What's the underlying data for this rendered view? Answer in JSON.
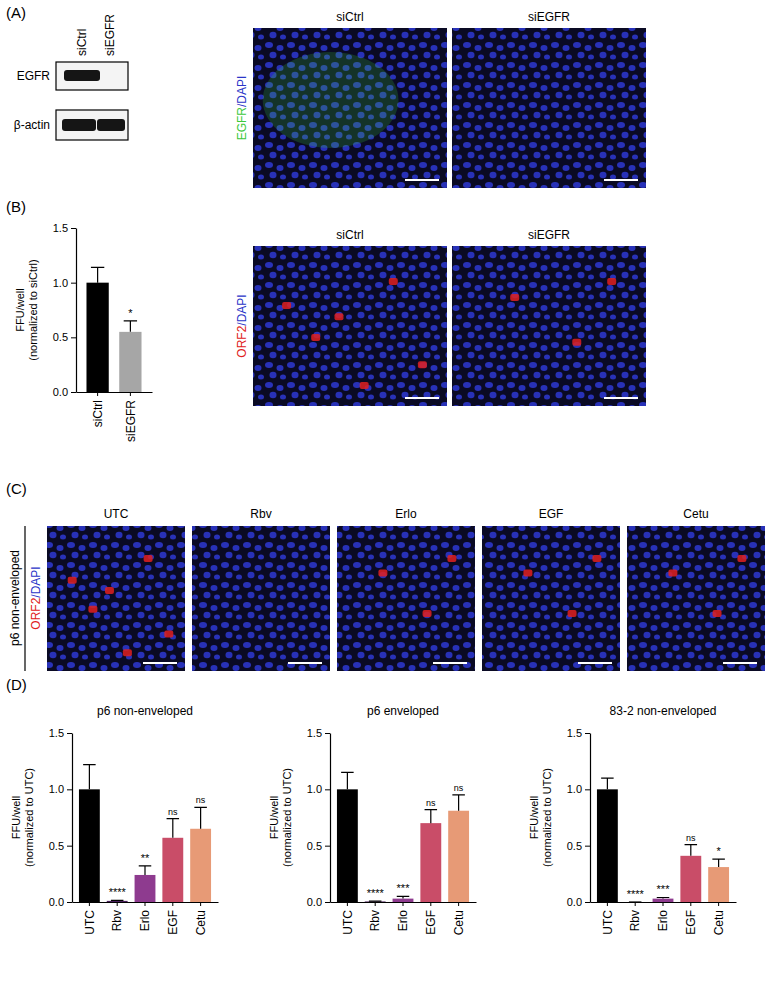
{
  "panel_labels": [
    "(A)",
    "(B)",
    "(C)",
    "(D)"
  ],
  "blot": {
    "lanes": [
      "siCtrl",
      "siEGFR"
    ],
    "rows": [
      "EGFR",
      "β-actin"
    ]
  },
  "image_panels": [
    {
      "titles": [
        "siCtrl",
        "siEGFR"
      ],
      "stain": [
        {
          "text": "EGFR",
          "color": "#3cc83c"
        },
        {
          "text": "/DAPI",
          "color": "#2b35c8"
        }
      ]
    },
    {
      "titles": [
        "siCtrl",
        "siEGFR"
      ],
      "stain": [
        {
          "text": "ORF2",
          "color": "#e02020"
        },
        {
          "text": "/DAPI",
          "color": "#2b35c8"
        }
      ]
    },
    {
      "row_label": "p6 non-enveloped",
      "titles": [
        "UTC",
        "Rbv",
        "Erlo",
        "EGF",
        "Cetu"
      ],
      "stain": [
        {
          "text": "ORF2",
          "color": "#e02020"
        },
        {
          "text": "/DAPI",
          "color": "#2b35c8"
        }
      ]
    }
  ],
  "chart_data": [
    {
      "type": "bar",
      "ylabel": [
        "FFU/well",
        "(normalized to siCtrl)"
      ],
      "categories": [
        "siCtrl",
        "siEGFR"
      ],
      "values": [
        1.0,
        0.55
      ],
      "errors": [
        0.14,
        0.1
      ],
      "colors": [
        "#000000",
        "#a6a6a6"
      ],
      "annotations": [
        null,
        "*"
      ],
      "ylim": [
        0,
        1.5
      ],
      "yticks": [
        {
          "value": 0,
          "label": "0.0"
        },
        {
          "value": 0.5,
          "label": "0.5"
        },
        {
          "value": 1,
          "label": "1.0"
        },
        {
          "value": 1.5,
          "label": "1.5"
        }
      ]
    },
    {
      "type": "bar",
      "title": "p6 non-enveloped",
      "ylabel": [
        "FFU/well",
        "(normalized to UTC)"
      ],
      "categories": [
        "UTC",
        "Rbv",
        "Erlo",
        "EGF",
        "Cetu"
      ],
      "values": [
        1.0,
        0.01,
        0.24,
        0.57,
        0.65
      ],
      "errors": [
        0.22,
        0.005,
        0.08,
        0.17,
        0.19
      ],
      "colors": [
        "#000000",
        "#4a1f5c",
        "#8e3b8f",
        "#c94d68",
        "#e79a76"
      ],
      "annotations": [
        null,
        "****",
        "**",
        "ns",
        "ns"
      ],
      "ylim": [
        0,
        1.5
      ],
      "yticks": [
        {
          "value": 0,
          "label": "0.0"
        },
        {
          "value": 0.5,
          "label": "0.5"
        },
        {
          "value": 1,
          "label": "1.0"
        },
        {
          "value": 1.5,
          "label": "1.5"
        }
      ]
    },
    {
      "type": "bar",
      "title": "p6 enveloped",
      "ylabel": [
        "FFU/well",
        "(normalized to UTC)"
      ],
      "categories": [
        "UTC",
        "Rbv",
        "Erlo",
        "EGF",
        "Cetu"
      ],
      "values": [
        1.0,
        0.005,
        0.03,
        0.7,
        0.81
      ],
      "errors": [
        0.15,
        0.003,
        0.02,
        0.12,
        0.14
      ],
      "colors": [
        "#000000",
        "#4a1f5c",
        "#8e3b8f",
        "#c94d68",
        "#e79a76"
      ],
      "annotations": [
        null,
        "****",
        "***",
        "ns",
        "ns"
      ],
      "ylim": [
        0,
        1.5
      ],
      "yticks": [
        {
          "value": 0,
          "label": "0.0"
        },
        {
          "value": 0.5,
          "label": "0.5"
        },
        {
          "value": 1,
          "label": "1.0"
        },
        {
          "value": 1.5,
          "label": "1.5"
        }
      ]
    },
    {
      "type": "bar",
      "title": "83-2 non-enveloped",
      "ylabel": [
        "FFU/well",
        "(normalized to UTC)"
      ],
      "categories": [
        "UTC",
        "Rbv",
        "Erlo",
        "EGF",
        "Cetu"
      ],
      "values": [
        1.0,
        0.0,
        0.03,
        0.41,
        0.31
      ],
      "errors": [
        0.1,
        0.0,
        0.01,
        0.1,
        0.07
      ],
      "colors": [
        "#000000",
        "#4a1f5c",
        "#8e3b8f",
        "#c94d68",
        "#e79a76"
      ],
      "annotations": [
        null,
        "****",
        "***",
        "ns",
        "*"
      ],
      "ylim": [
        0,
        1.5
      ],
      "yticks": [
        {
          "value": 0,
          "label": "0.0"
        },
        {
          "value": 0.5,
          "label": "0.5"
        },
        {
          "value": 1,
          "label": "1.0"
        },
        {
          "value": 1.5,
          "label": "1.5"
        }
      ]
    }
  ]
}
